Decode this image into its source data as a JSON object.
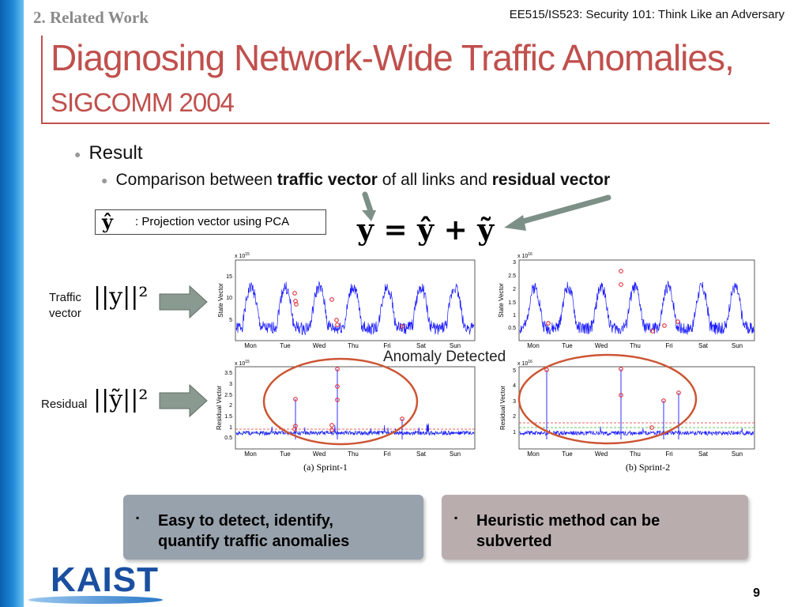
{
  "header": {
    "section": "2. Related Work",
    "course": "EE515/IS523: Security 101: Think Like an Adversary"
  },
  "title": {
    "main": "Diagnosing Network-Wide Traffic Anomalies,",
    "venue": "SIGCOMM 2004"
  },
  "bullets": {
    "level1": "Result",
    "level2_prefix": "Comparison between ",
    "level2_bold1": "traffic vector",
    "level2_mid": " of all links and ",
    "level2_bold2": "residual vector"
  },
  "equation": "y = ŷ + ỹ",
  "legend": {
    "symbol": "ŷ",
    "text": ": Projection vector using PCA"
  },
  "row_labels": {
    "traffic_line1": "Traffic",
    "traffic_line2": "vector",
    "traffic_norm": "||y||²",
    "residual": "Residual",
    "residual_norm": "||ỹ||²"
  },
  "annotation": "Anomaly Detected",
  "charts": {
    "days": [
      "Mon",
      "Tue",
      "Wed",
      "Thu",
      "Fri",
      "Sat",
      "Sun"
    ],
    "sprint1_top": {
      "ylabel": "State Vector",
      "exp": "x 10",
      "exp_power": "15",
      "yticks": [
        "15",
        "10",
        "5"
      ]
    },
    "sprint2_top": {
      "ylabel": "State Vector",
      "exp": "x 10",
      "exp_power": "16",
      "yticks": [
        "3",
        "2.5",
        "2",
        "1.5",
        "1",
        "0.5"
      ]
    },
    "sprint1_bottom": {
      "ylabel": "Residual Vector",
      "exp": "x 10",
      "exp_power": "15",
      "yticks": [
        "3.5",
        "3",
        "2.5",
        "2",
        "1.5",
        "1",
        "0.5"
      ],
      "caption": "(a) Sprint-1"
    },
    "sprint2_bottom": {
      "ylabel": "Residual Vector",
      "exp": "x 10",
      "exp_power": "16",
      "yticks": [
        "5",
        "4",
        "3",
        "2",
        "1"
      ],
      "caption": "(b) Sprint-2"
    }
  },
  "boxes": {
    "pro_bullet": "▪",
    "pro": "Easy to detect, identify, quantify traffic anomalies",
    "con_bullet": "▪",
    "con": "Heuristic method can be subverted"
  },
  "logo": "KAIST",
  "page_number": "9",
  "colors": {
    "accent": "#c0504d",
    "plot_line": "#1a1aff",
    "marker": "#e0303a",
    "ellipse": "#cc5533",
    "box_pro": "#98a2ac",
    "box_con": "#b9adad",
    "logo": "#1a4fa0"
  }
}
